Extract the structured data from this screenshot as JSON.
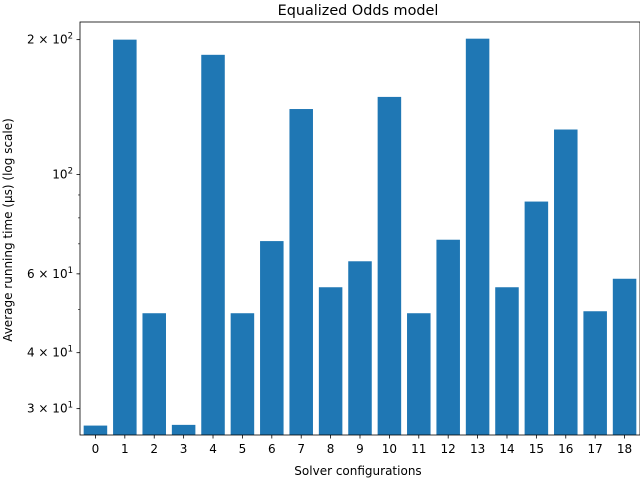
{
  "chart_data": {
    "type": "bar",
    "title": "Equalized Odds model",
    "xlabel": "Solver configurations",
    "ylabel": "Average running time (µs) (log scale)",
    "yscale": "log",
    "ylim": [
      26.2,
      219
    ],
    "grid": false,
    "categories": [
      "0",
      "1",
      "2",
      "3",
      "4",
      "5",
      "6",
      "7",
      "8",
      "9",
      "10",
      "11",
      "12",
      "13",
      "14",
      "15",
      "16",
      "17",
      "18"
    ],
    "values": [
      27.5,
      200,
      49,
      27.6,
      185,
      49,
      71,
      140,
      56,
      64,
      149,
      49,
      71.5,
      201,
      56,
      87,
      126,
      49.5,
      58.5
    ],
    "bar_color": "#1f77b4",
    "ytick_values": [
      30,
      40,
      60,
      100,
      200
    ],
    "ytick_labels": [
      {
        "mantissa": "3",
        "times": "×",
        "base": "10",
        "exp": "1"
      },
      {
        "mantissa": "4",
        "times": "×",
        "base": "10",
        "exp": "1"
      },
      {
        "mantissa": "6",
        "times": "×",
        "base": "10",
        "exp": "1"
      },
      {
        "mantissa": "",
        "times": "",
        "base": "10",
        "exp": "2"
      },
      {
        "mantissa": "2",
        "times": "×",
        "base": "10",
        "exp": "2"
      }
    ]
  }
}
